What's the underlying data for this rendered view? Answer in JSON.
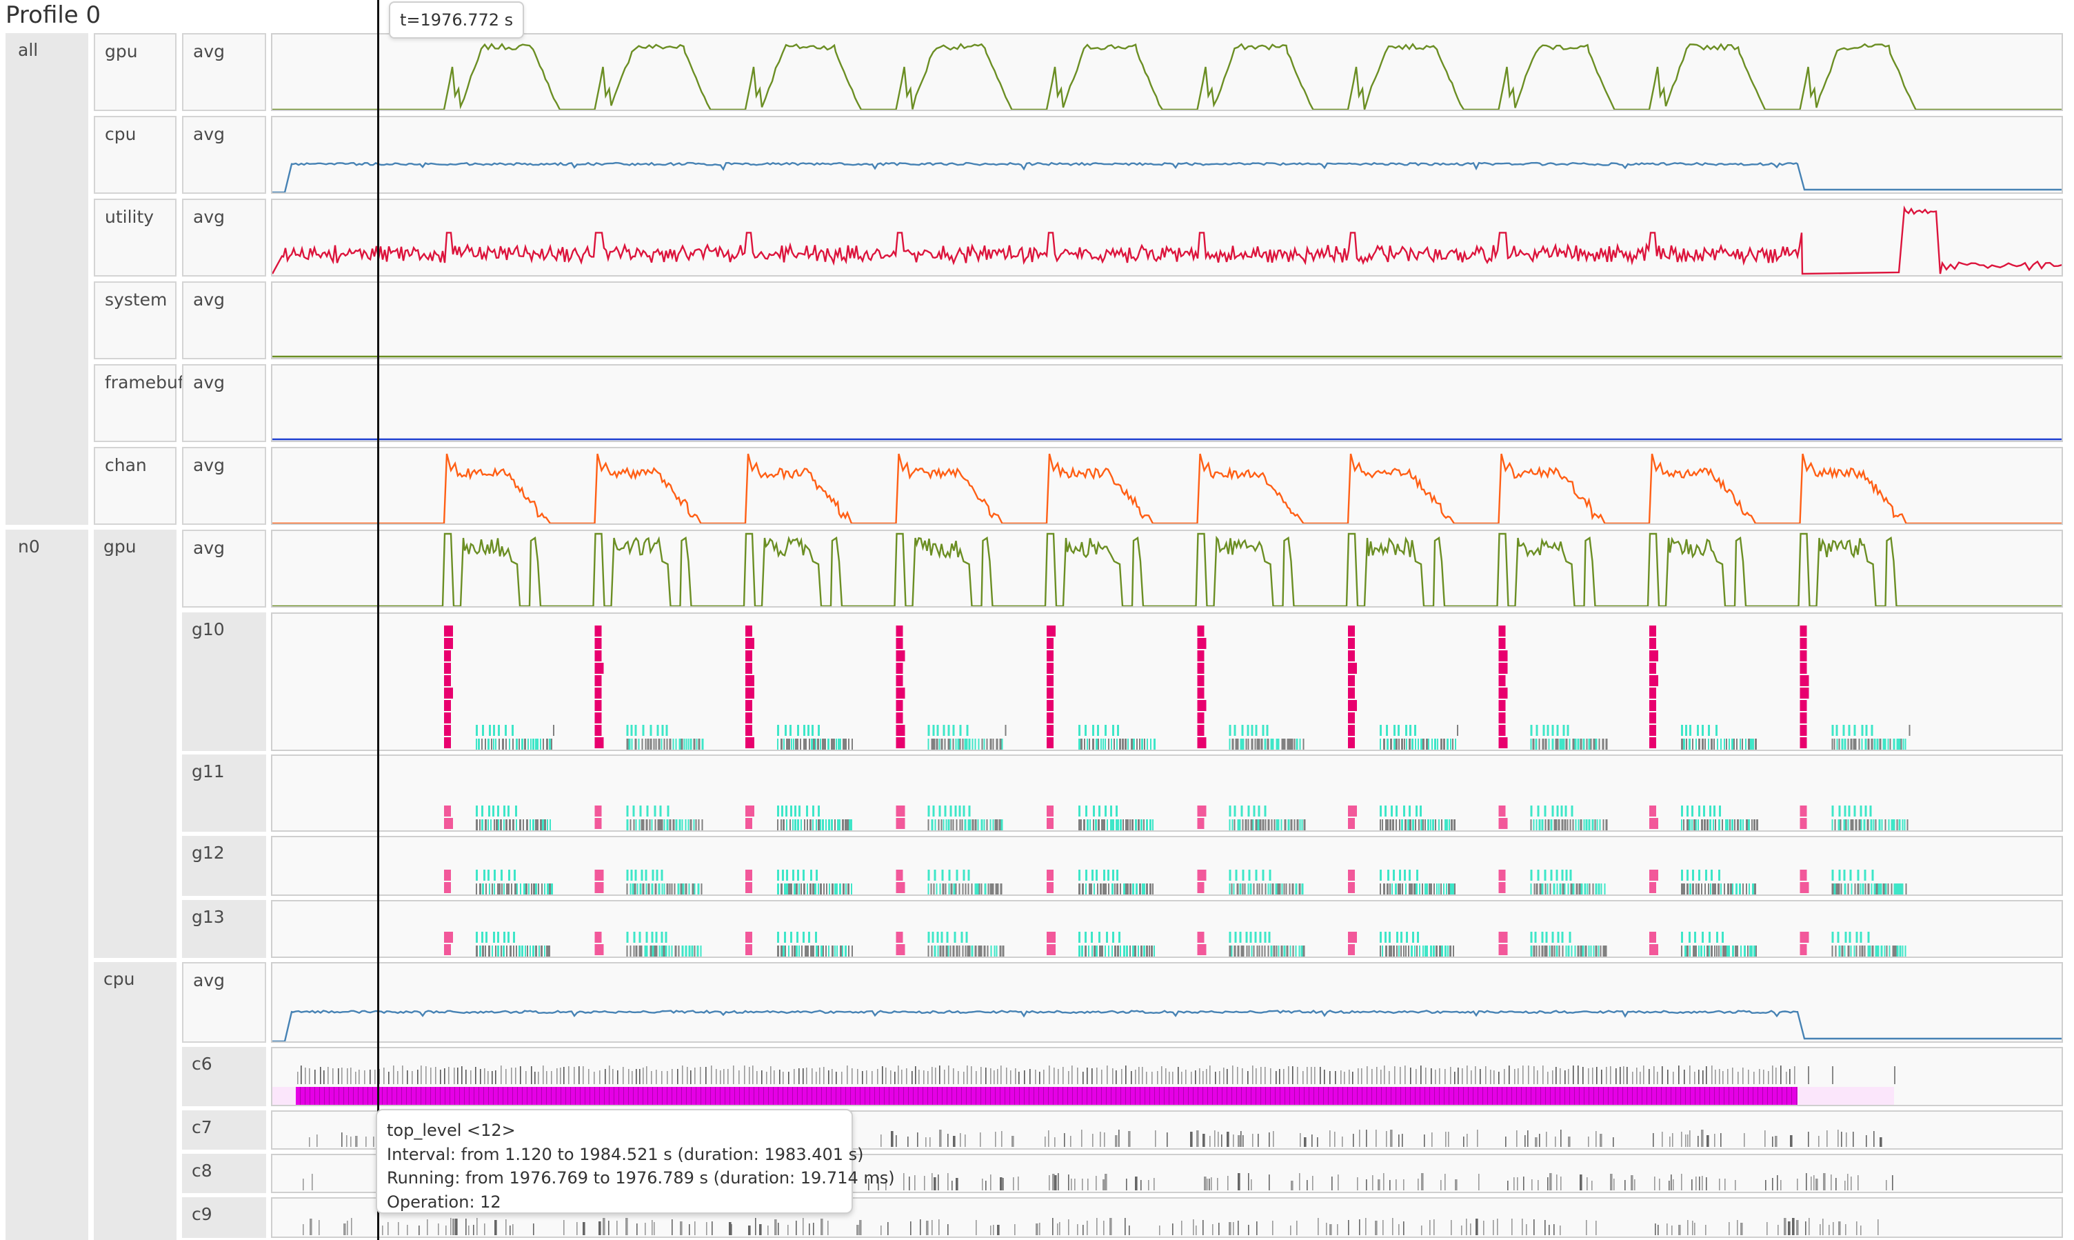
{
  "title": "Profile 0",
  "groups": [
    {
      "label": "all",
      "rows": [
        {
          "proc": "gpu",
          "kind": "avg",
          "color": "#6b8e23",
          "pattern": "gpu_all"
        },
        {
          "proc": "cpu",
          "kind": "avg",
          "color": "#4682b4",
          "pattern": "cpu"
        },
        {
          "proc": "utility",
          "kind": "avg",
          "color": "#dc143c",
          "pattern": "utility"
        },
        {
          "proc": "system",
          "kind": "avg",
          "color": "#6b8e23",
          "pattern": "flat"
        },
        {
          "proc": "framebuffer",
          "kind": "avg",
          "color": "#1e3fd0",
          "pattern": "flat"
        },
        {
          "proc": "chan",
          "kind": "avg",
          "color": "#ff5f15",
          "pattern": "chan"
        }
      ]
    },
    {
      "label": "n0",
      "procs": [
        {
          "proc": "gpu",
          "rows": [
            {
              "kind": "avg",
              "color": "#6b8e23",
              "pattern": "gpu_n0"
            },
            {
              "kind": "g10"
            },
            {
              "kind": "g11"
            },
            {
              "kind": "g12"
            },
            {
              "kind": "g13"
            }
          ]
        },
        {
          "proc": "cpu",
          "rows": [
            {
              "kind": "avg",
              "color": "#4682b4",
              "pattern": "cpu"
            },
            {
              "kind": "c6"
            },
            {
              "kind": "c7"
            },
            {
              "kind": "c8"
            },
            {
              "kind": "c9"
            }
          ]
        }
      ]
    }
  ],
  "cursor": {
    "time_label": "t=1976.772 s"
  },
  "tooltip": {
    "title": "top_level <12>",
    "interval": "Interval: from 1.120 to 1984.521 s (duration: 1983.401 s)",
    "running": "Running: from 1976.769 to 1976.789 s (duration: 19.714 ms)",
    "operation": "Operation: 12"
  },
  "colors": {
    "gpu_task": "#e8006e",
    "gpu_task_light": "#f2589a",
    "copy_task": "#3ee6c8",
    "wait": "#808080",
    "cpu_task": "#e500e5",
    "cpu_idle": "#fbe6fb"
  }
}
